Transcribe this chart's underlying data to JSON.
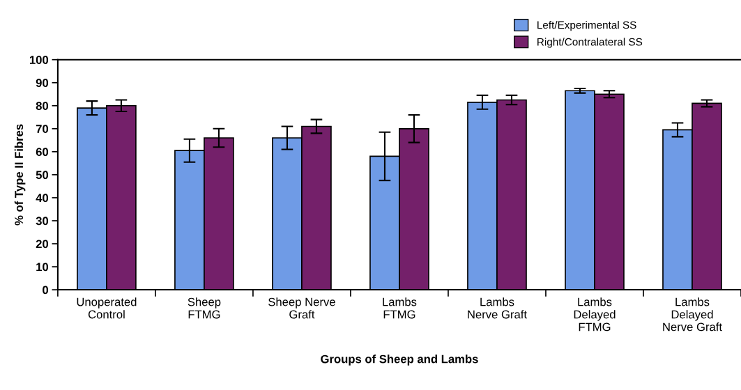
{
  "chart_data": {
    "type": "bar",
    "xlabel": "Groups of Sheep and Lambs",
    "ylabel": "% of Type II Fibres",
    "categories": [
      "Unoperated\nControl",
      "Sheep\nFTMG",
      "Sheep Nerve\nGraft",
      "Lambs\nFTMG",
      "Lambs\nNerve Graft",
      "Lambs\nDelayed\nFTMG",
      "Lambs\nDelayed\nNerve Graft"
    ],
    "series": [
      {
        "name": "Left/Experimental SS",
        "color": "#6f9be6",
        "values": [
          79,
          60.5,
          66,
          58,
          81.5,
          86.5,
          69.5
        ],
        "errors": [
          3,
          5,
          5,
          10.5,
          3,
          1,
          3
        ]
      },
      {
        "name": "Right/Contralateral SS",
        "color": "#74206a",
        "values": [
          80,
          66,
          71,
          70,
          82.5,
          85,
          81
        ],
        "errors": [
          2.5,
          4,
          3,
          6,
          2,
          1.5,
          1.5
        ]
      }
    ],
    "ylim": [
      0,
      100
    ],
    "yticks": [
      0,
      10,
      20,
      30,
      40,
      50,
      60,
      70,
      80,
      90,
      100
    ],
    "grid": false,
    "legend": "top right"
  }
}
